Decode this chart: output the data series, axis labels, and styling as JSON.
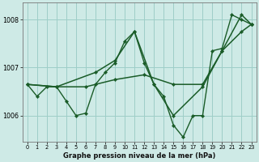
{
  "title": "Graphe pression niveau de la mer (hPa)",
  "background_color": "#ceeae6",
  "grid_color": "#9ecec8",
  "line_color": "#1a5c28",
  "xlim_min": -0.5,
  "xlim_max": 23.5,
  "ylim_min": 1005.45,
  "ylim_max": 1008.35,
  "yticks": [
    1006,
    1007,
    1008
  ],
  "xticks": [
    0,
    1,
    2,
    3,
    4,
    5,
    6,
    7,
    8,
    9,
    10,
    11,
    12,
    13,
    14,
    15,
    16,
    17,
    18,
    19,
    20,
    21,
    22,
    23
  ],
  "series": [
    {
      "x": [
        0,
        1,
        2,
        3,
        4,
        5,
        6,
        7,
        8,
        9,
        10,
        11,
        12,
        13,
        14,
        15,
        16,
        17,
        18,
        19,
        20,
        21,
        22,
        23
      ],
      "y": [
        1006.65,
        1006.4,
        1006.6,
        1006.6,
        1006.3,
        1006.0,
        1006.05,
        1006.65,
        1006.9,
        1007.1,
        1007.55,
        1007.75,
        1007.1,
        1006.65,
        1006.4,
        1005.8,
        1005.55,
        1006.0,
        1006.0,
        1007.35,
        1007.4,
        1008.1,
        1008.0,
        1007.9
      ]
    },
    {
      "x": [
        0,
        3,
        7,
        9,
        11,
        13,
        15,
        18,
        20,
        22,
        23
      ],
      "y": [
        1006.65,
        1006.6,
        1006.9,
        1007.15,
        1007.75,
        1006.65,
        1006.0,
        1006.6,
        1007.35,
        1008.1,
        1007.9
      ]
    },
    {
      "x": [
        0,
        3,
        6,
        9,
        12,
        15,
        18,
        20,
        22,
        23
      ],
      "y": [
        1006.65,
        1006.6,
        1006.6,
        1006.75,
        1006.85,
        1006.65,
        1006.65,
        1007.35,
        1007.75,
        1007.9
      ]
    }
  ]
}
